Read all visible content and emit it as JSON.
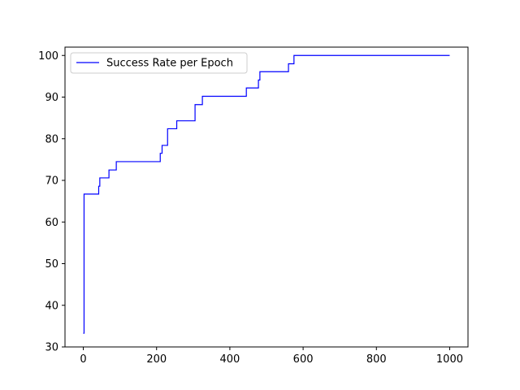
{
  "chart_data": {
    "type": "line",
    "title": "",
    "xlabel": "",
    "ylabel": "",
    "xlim": [
      -50,
      1050
    ],
    "ylim": [
      30,
      102
    ],
    "xticks": [
      0,
      200,
      400,
      600,
      800,
      1000
    ],
    "yticks": [
      30,
      40,
      50,
      60,
      70,
      80,
      90,
      100
    ],
    "grid": false,
    "legend": {
      "position": "top-left"
    },
    "series": [
      {
        "name": "Success Rate per Epoch",
        "color": "#0000ff",
        "step": "post",
        "x": [
          0,
          2,
          40,
          42,
          45,
          70,
          90,
          208,
          210,
          215,
          225,
          230,
          255,
          305,
          325,
          445,
          475,
          478,
          482,
          560,
          568,
          575,
          1000
        ],
        "values": [
          33.3,
          66.7,
          66.7,
          68.6,
          70.6,
          72.5,
          74.5,
          74.5,
          76.5,
          78.4,
          78.4,
          82.4,
          84.3,
          88.2,
          90.2,
          92.2,
          92.2,
          94.1,
          96.1,
          98.0,
          98.0,
          100.0,
          100.0
        ]
      }
    ]
  }
}
